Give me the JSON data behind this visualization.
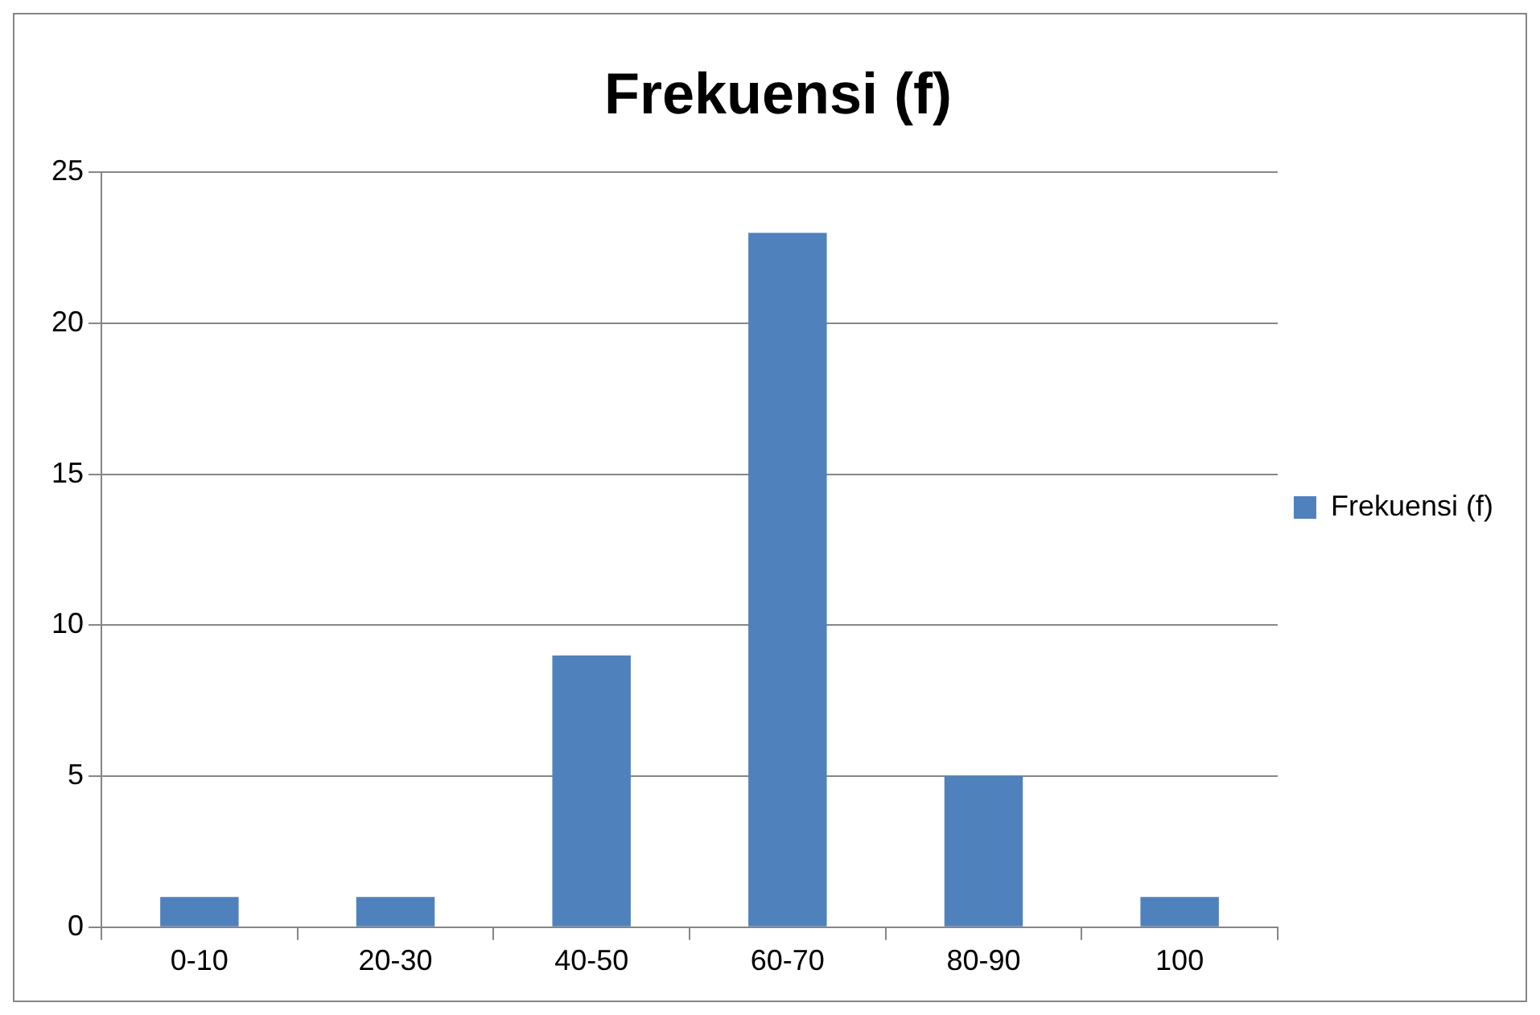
{
  "chart_data": {
    "type": "bar",
    "title": "Frekuensi (f)",
    "categories": [
      "0-10",
      "20-30",
      "40-50",
      "60-70",
      "80-90",
      "100"
    ],
    "series": [
      {
        "name": "Frekuensi (f)",
        "color": "#4f81bd",
        "values": [
          1,
          1,
          9,
          23,
          5,
          1
        ]
      }
    ],
    "ylim": [
      0,
      25
    ],
    "yticks": [
      0,
      5,
      10,
      15,
      20,
      25
    ],
    "grid": "y",
    "legend": "right"
  }
}
